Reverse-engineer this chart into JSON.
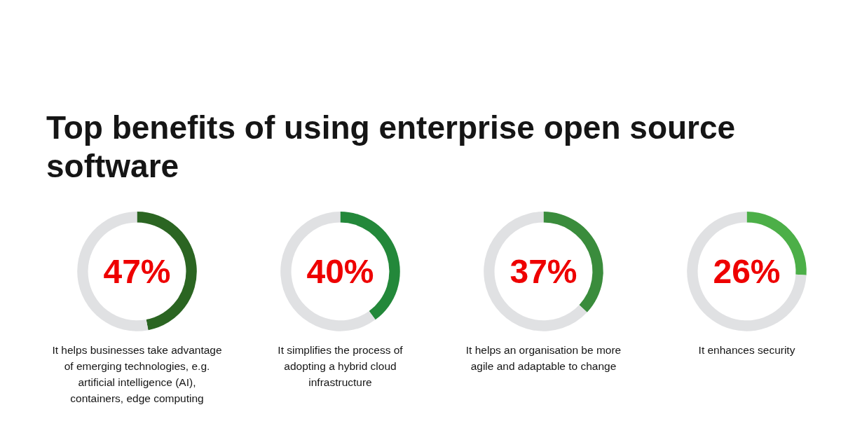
{
  "chart_data": [
    {
      "type": "donut",
      "title": "Top benefits of using enterprise open source software",
      "categories": [
        null,
        null
      ],
      "values": [
        47,
        53
      ],
      "colors": [
        "#2b6522",
        "#e0e1e3"
      ],
      "value_labels": [
        "47%",
        null
      ],
      "xlabel": "It helps businesses take advantage of emerging technologies, e.g. artificial intelligence (AI), containers, edge computing"
    },
    {
      "type": "donut",
      "categories": [
        null,
        null
      ],
      "values": [
        40,
        60
      ],
      "colors": [
        "#23883a",
        "#e0e1e3"
      ],
      "value_labels": [
        "40%",
        null
      ],
      "xlabel": "It simplifies the process of adopting a hybrid cloud infrastructure"
    },
    {
      "type": "donut",
      "categories": [
        null,
        null
      ],
      "values": [
        37,
        63
      ],
      "colors": [
        "#3a8c3c",
        "#e0e1e3"
      ],
      "value_labels": [
        "37%",
        null
      ],
      "xlabel": "It helps an organisation be more agile and adaptable to change"
    },
    {
      "type": "donut",
      "categories": [
        null,
        null
      ],
      "values": [
        26,
        74
      ],
      "colors": [
        "#4caf48",
        "#e0e1e3"
      ],
      "value_labels": [
        "26%",
        null
      ],
      "xlabel": "It enhances security"
    }
  ]
}
